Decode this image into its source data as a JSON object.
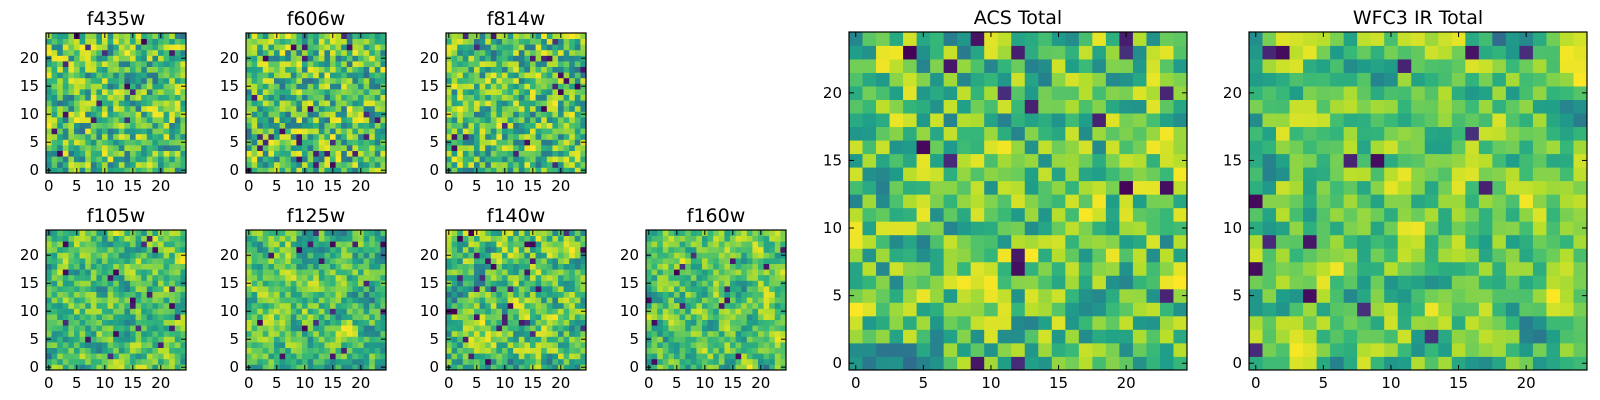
{
  "chart_data": [
    {
      "type": "heatmap",
      "title": "f435w",
      "xticks": [
        0,
        5,
        10,
        15,
        20
      ],
      "yticks": [
        0,
        5,
        10,
        15,
        20
      ],
      "xlim": [
        -0.5,
        24.5
      ],
      "ylim": [
        -0.5,
        24.5
      ],
      "grid": false,
      "colormap": "viridis"
    },
    {
      "type": "heatmap",
      "title": "f606w",
      "xticks": [
        0,
        5,
        10,
        15,
        20
      ],
      "yticks": [
        0,
        5,
        10,
        15,
        20
      ],
      "xlim": [
        -0.5,
        24.5
      ],
      "ylim": [
        -0.5,
        24.5
      ],
      "grid": false,
      "colormap": "viridis"
    },
    {
      "type": "heatmap",
      "title": "f814w",
      "xticks": [
        0,
        5,
        10,
        15,
        20
      ],
      "yticks": [
        0,
        5,
        10,
        15,
        20
      ],
      "xlim": [
        -0.5,
        24.5
      ],
      "ylim": [
        -0.5,
        24.5
      ],
      "grid": false,
      "colormap": "viridis"
    },
    {
      "type": "heatmap",
      "title": "f105w",
      "xticks": [
        0,
        5,
        10,
        15,
        20
      ],
      "yticks": [
        0,
        5,
        10,
        15,
        20
      ],
      "xlim": [
        -0.5,
        24.5
      ],
      "ylim": [
        -0.5,
        24.5
      ],
      "grid": false,
      "colormap": "viridis"
    },
    {
      "type": "heatmap",
      "title": "f125w",
      "xticks": [
        0,
        5,
        10,
        15,
        20
      ],
      "yticks": [
        0,
        5,
        10,
        15,
        20
      ],
      "xlim": [
        -0.5,
        24.5
      ],
      "ylim": [
        -0.5,
        24.5
      ],
      "grid": false,
      "colormap": "viridis"
    },
    {
      "type": "heatmap",
      "title": "f140w",
      "xticks": [
        0,
        5,
        10,
        15,
        20
      ],
      "yticks": [
        0,
        5,
        10,
        15,
        20
      ],
      "xlim": [
        -0.5,
        24.5
      ],
      "ylim": [
        -0.5,
        24.5
      ],
      "grid": false,
      "colormap": "viridis"
    },
    {
      "type": "heatmap",
      "title": "f160w",
      "xticks": [
        0,
        5,
        10,
        15,
        20
      ],
      "yticks": [
        0,
        5,
        10,
        15,
        20
      ],
      "xlim": [
        -0.5,
        24.5
      ],
      "ylim": [
        -0.5,
        24.5
      ],
      "grid": false,
      "colormap": "viridis"
    },
    {
      "type": "heatmap",
      "title": "ACS Total",
      "xticks": [
        0,
        5,
        10,
        15,
        20
      ],
      "yticks": [
        0,
        5,
        10,
        15,
        20
      ],
      "xlim": [
        -0.5,
        24.5
      ],
      "ylim": [
        -0.5,
        24.5
      ],
      "grid": false,
      "colormap": "viridis"
    },
    {
      "type": "heatmap",
      "title": "WFC3 IR Total",
      "xticks": [
        0,
        5,
        10,
        15,
        20
      ],
      "yticks": [
        0,
        5,
        10,
        15,
        20
      ],
      "xlim": [
        -0.5,
        24.5
      ],
      "ylim": [
        -0.5,
        24.5
      ],
      "grid": false,
      "colormap": "viridis"
    }
  ]
}
